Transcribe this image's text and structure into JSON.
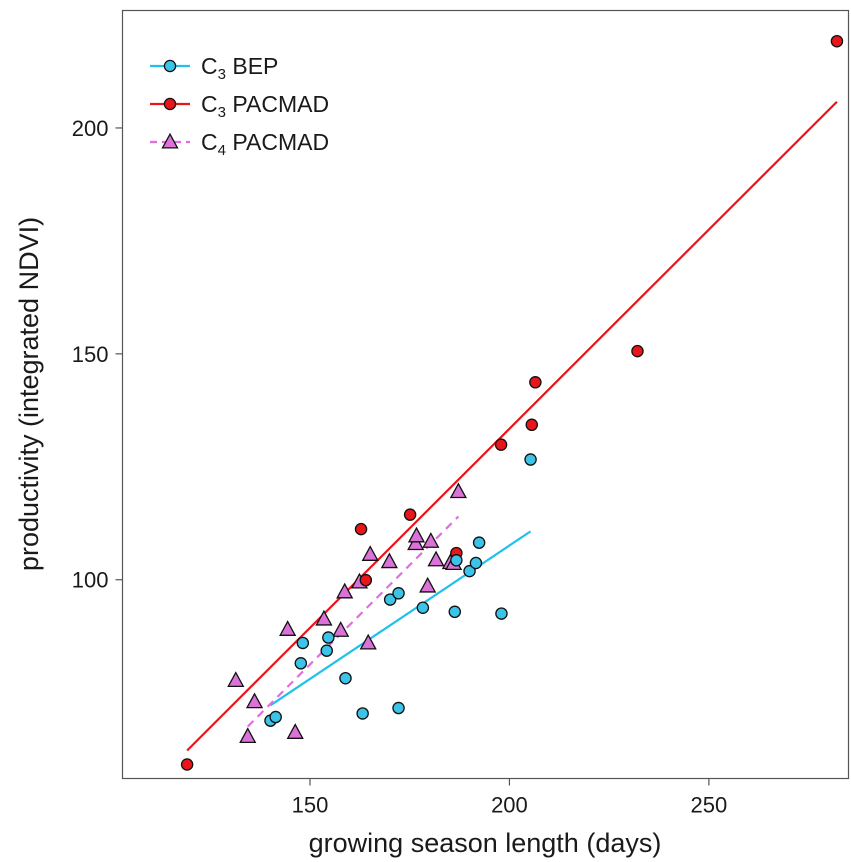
{
  "chart_data": {
    "type": "scatter",
    "xlabel": "growing season length (days)",
    "ylabel": "productivity (integrated NDVI)",
    "xlim": [
      103,
      285
    ],
    "ylim": [
      56,
      226
    ],
    "x_ticks": [
      150,
      200,
      250
    ],
    "y_ticks": [
      100,
      150,
      200
    ],
    "grid": false,
    "legend_position": "top-left",
    "series": [
      {
        "name": "C3 BEP",
        "name_main": "C",
        "name_sub": "3",
        "name_rest": " BEP",
        "marker": "circle",
        "color": "#3cc3e8",
        "line_color": "#1ec1ec",
        "line_style": "solid",
        "points": [
          [
            140.1,
            68.8
          ],
          [
            141.4,
            69.6
          ],
          [
            147.7,
            81.5
          ],
          [
            148.2,
            86.0
          ],
          [
            154.2,
            84.3
          ],
          [
            154.6,
            87.2
          ],
          [
            158.9,
            78.2
          ],
          [
            163.2,
            70.4
          ],
          [
            170.1,
            95.6
          ],
          [
            172.2,
            97.0
          ],
          [
            172.2,
            71.6
          ],
          [
            178.3,
            93.8
          ],
          [
            186.3,
            92.9
          ],
          [
            186.7,
            104.3
          ],
          [
            190.0,
            101.9
          ],
          [
            191.6,
            103.7
          ],
          [
            192.4,
            108.2
          ],
          [
            198.0,
            92.5
          ],
          [
            205.3,
            126.6
          ]
        ],
        "fit": [
          [
            140.1,
            72.2
          ],
          [
            205.3,
            110.7
          ]
        ]
      },
      {
        "name": "C3 PACMAD",
        "name_main": "C",
        "name_sub": "3",
        "name_rest": " PACMAD",
        "marker": "circle",
        "color": "#e8151b",
        "line_color": "#e8151b",
        "line_style": "solid",
        "points": [
          [
            119.2,
            59.1
          ],
          [
            162.8,
            111.2
          ],
          [
            164.0,
            99.9
          ],
          [
            175.1,
            114.4
          ],
          [
            186.7,
            105.9
          ],
          [
            197.9,
            129.9
          ],
          [
            205.6,
            134.3
          ],
          [
            206.5,
            143.7
          ],
          [
            232.1,
            150.6
          ],
          [
            282.1,
            219.2
          ]
        ],
        "fit": [
          [
            119.2,
            62.2
          ],
          [
            282.1,
            205.8
          ]
        ]
      },
      {
        "name": "C4 PACMAD",
        "name_main": "C",
        "name_sub": "4",
        "name_rest": " PACMAD",
        "marker": "triangle",
        "color": "#da72d8",
        "line_color": "#e06ee0",
        "line_style": "dashed",
        "points": [
          [
            131.4,
            77.7
          ],
          [
            134.4,
            65.3
          ],
          [
            136.1,
            73.0
          ],
          [
            144.4,
            89.0
          ],
          [
            146.3,
            66.2
          ],
          [
            153.5,
            91.3
          ],
          [
            157.7,
            88.8
          ],
          [
            158.7,
            97.3
          ],
          [
            162.4,
            99.5
          ],
          [
            164.6,
            86.0
          ],
          [
            165.1,
            105.6
          ],
          [
            169.9,
            104.0
          ],
          [
            176.5,
            108.0
          ],
          [
            176.7,
            109.7
          ],
          [
            179.5,
            98.6
          ],
          [
            180.3,
            108.5
          ],
          [
            181.6,
            104.4
          ],
          [
            185.2,
            103.8
          ],
          [
            186.0,
            103.6
          ],
          [
            187.2,
            119.5
          ]
        ],
        "fit": [
          [
            134.4,
            67.5
          ],
          [
            187.2,
            114.0
          ]
        ]
      }
    ]
  }
}
